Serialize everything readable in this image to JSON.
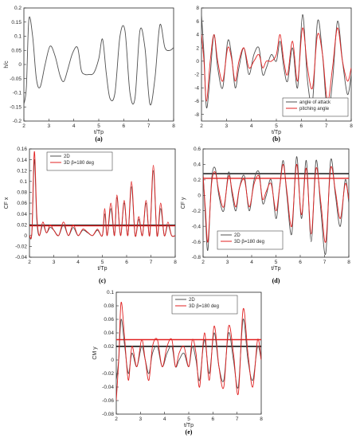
{
  "chart_data": [
    {
      "id": "a",
      "panel_label": "(a)",
      "type": "line",
      "xlabel": "t/Tp",
      "ylabel": "h/c",
      "xlim": [
        2,
        8
      ],
      "ylim": [
        -0.2,
        0.2
      ],
      "xticks": [
        "2",
        "3",
        "4",
        "5",
        "6",
        "7",
        "8"
      ],
      "yticks": [
        "-0.2",
        "-0.15",
        "-0.1",
        "-0.05",
        "0",
        "0.05",
        "0.1",
        "0.15",
        "0.2"
      ],
      "grid": false,
      "legend": null,
      "hlines": [],
      "series": [
        {
          "name": "",
          "color": "#505050",
          "x": [
            2,
            2.1,
            2.2,
            2.35,
            2.5,
            2.65,
            2.85,
            3.05,
            3.25,
            3.45,
            3.6,
            3.75,
            3.95,
            4.15,
            4.3,
            4.45,
            4.6,
            4.8,
            5.0,
            5.15,
            5.3,
            5.45,
            5.65,
            5.85,
            6.05,
            6.25,
            6.45,
            6.65,
            6.85,
            7.05,
            7.25,
            7.45,
            7.65,
            7.85,
            8.0
          ],
          "y": [
            -0.14,
            -0.08,
            0.16,
            0.1,
            -0.05,
            -0.08,
            0.0,
            0.065,
            0.03,
            -0.04,
            -0.06,
            -0.02,
            0.04,
            0.06,
            -0.02,
            -0.035,
            -0.035,
            -0.03,
            0.02,
            0.09,
            -0.03,
            -0.12,
            -0.1,
            0.1,
            0.12,
            -0.1,
            -0.12,
            0.12,
            0.06,
            -0.14,
            -0.05,
            0.14,
            0.06,
            0.05,
            0.06
          ]
        }
      ]
    },
    {
      "id": "b",
      "panel_label": "(b)",
      "type": "line",
      "xlabel": "t/Tp",
      "ylabel": "",
      "xlim": [
        2,
        8
      ],
      "ylim": [
        -9,
        8
      ],
      "xticks": [
        "2",
        "3",
        "4",
        "5",
        "6",
        "7",
        "8"
      ],
      "yticks": [
        "-8",
        "-6",
        "-4",
        "-2",
        "0",
        "2",
        "4",
        "6",
        "8"
      ],
      "grid": false,
      "legend": "bottom-right",
      "hlines": [],
      "series": [
        {
          "name": "angle of attack",
          "color": "#505050",
          "x": [
            2,
            2.1,
            2.2,
            2.35,
            2.5,
            2.65,
            2.85,
            3.05,
            3.2,
            3.35,
            3.5,
            3.7,
            3.9,
            4.1,
            4.3,
            4.45,
            4.6,
            4.8,
            5.0,
            5.15,
            5.3,
            5.45,
            5.65,
            5.85,
            6.05,
            6.25,
            6.45,
            6.65,
            6.85,
            7.05,
            7.25,
            7.45,
            7.65,
            7.85,
            8.0
          ],
          "y": [
            7,
            1,
            -7,
            -2,
            4,
            -1,
            -4,
            3,
            1,
            -4,
            -1,
            2,
            -2,
            1,
            2,
            -2,
            -1,
            1,
            0,
            3,
            -1,
            -3,
            2,
            -4,
            7,
            -3,
            -6,
            6,
            1,
            -8,
            -3,
            6,
            0,
            -5,
            -2
          ]
        },
        {
          "name": "pitching angle",
          "color": "#e02020",
          "x": [
            2,
            2.1,
            2.2,
            2.35,
            2.5,
            2.65,
            2.85,
            3.05,
            3.2,
            3.35,
            3.5,
            3.7,
            3.9,
            4.1,
            4.3,
            4.45,
            4.6,
            4.8,
            5.0,
            5.15,
            5.3,
            5.45,
            5.65,
            5.85,
            6.05,
            6.25,
            6.45,
            6.65,
            6.85,
            7.05,
            7.25,
            7.45,
            7.65,
            7.85,
            8.0
          ],
          "y": [
            4,
            0,
            -6,
            0,
            4,
            0,
            -3,
            2,
            0.5,
            -3,
            0,
            2,
            -1,
            0,
            1,
            -1,
            0,
            0,
            1,
            4,
            0,
            -2,
            3,
            -3,
            5,
            -1,
            -4,
            4,
            1,
            -6,
            -1,
            5,
            0,
            -3,
            -1
          ]
        }
      ]
    },
    {
      "id": "c",
      "panel_label": "(c)",
      "type": "line",
      "xlabel": "t/Tp",
      "ylabel": "CF x",
      "xlim": [
        2,
        8
      ],
      "ylim": [
        -0.04,
        0.16
      ],
      "xticks": [
        "2",
        "3",
        "4",
        "5",
        "6",
        "7",
        "8"
      ],
      "yticks": [
        "-0.04",
        "-0.02",
        "0",
        "0.02",
        "0.04",
        "0.06",
        "0.08",
        "0.1",
        "0.12",
        "0.14",
        "0.16"
      ],
      "grid": false,
      "legend": "top-left",
      "hlines": [
        {
          "y": 0.019,
          "color": "#000000"
        },
        {
          "y": 0.018,
          "color": "#e02020"
        }
      ],
      "series": [
        {
          "name": "2D",
          "color": "#505050",
          "x": [
            2,
            2.1,
            2.2,
            2.3,
            2.4,
            2.55,
            2.7,
            2.85,
            3.0,
            3.2,
            3.4,
            3.6,
            3.8,
            4.0,
            4.2,
            4.4,
            4.6,
            4.8,
            5.0,
            5.1,
            5.2,
            5.35,
            5.5,
            5.6,
            5.75,
            5.9,
            6.05,
            6.2,
            6.35,
            6.5,
            6.65,
            6.8,
            6.95,
            7.1,
            7.25,
            7.4,
            7.55,
            7.7,
            7.85,
            8.0
          ],
          "y": [
            0.0,
            0.005,
            0.14,
            0.03,
            0.0,
            0.02,
            0.005,
            0.015,
            0.01,
            0.0,
            0.02,
            0.0,
            0.015,
            0.0,
            0.01,
            0.005,
            0.0,
            0.01,
            0.0,
            0.04,
            0.0,
            0.05,
            0.0,
            0.07,
            0.0,
            0.06,
            0.0,
            0.09,
            0.0,
            0.03,
            0.0,
            0.06,
            0.0,
            0.12,
            0.0,
            0.05,
            0.0,
            0.02,
            0.0,
            0.0
          ]
        },
        {
          "name": "3D β=180 deg",
          "color": "#e02020",
          "x": [
            2,
            2.1,
            2.2,
            2.3,
            2.4,
            2.55,
            2.7,
            2.85,
            3.0,
            3.2,
            3.4,
            3.6,
            3.8,
            4.0,
            4.2,
            4.4,
            4.6,
            4.8,
            5.0,
            5.1,
            5.2,
            5.35,
            5.5,
            5.6,
            5.75,
            5.9,
            6.05,
            6.2,
            6.35,
            6.5,
            6.65,
            6.8,
            6.95,
            7.1,
            7.25,
            7.4,
            7.55,
            7.7,
            7.85,
            8.0
          ],
          "y": [
            0.0,
            0.008,
            0.155,
            0.04,
            0.0,
            0.025,
            0.005,
            0.02,
            0.01,
            0.0,
            0.025,
            0.0,
            0.02,
            0.0,
            0.012,
            0.006,
            0.0,
            0.012,
            0.0,
            0.05,
            0.0,
            0.06,
            0.0,
            0.075,
            0.0,
            0.065,
            0.0,
            0.1,
            0.0,
            0.035,
            0.0,
            0.065,
            0.0,
            0.13,
            0.0,
            0.06,
            0.0,
            0.025,
            0.0,
            0.0
          ]
        }
      ]
    },
    {
      "id": "d",
      "panel_label": "(d)",
      "type": "line",
      "xlabel": "t/Tp",
      "ylabel": "CF y",
      "xlim": [
        2,
        8
      ],
      "ylim": [
        -0.8,
        0.6
      ],
      "xticks": [
        "2",
        "3",
        "4",
        "5",
        "6",
        "7",
        "8"
      ],
      "yticks": [
        "-0.8",
        "-0.6",
        "-0.4",
        "-0.2",
        "0",
        "0.2",
        "0.4",
        "0.6"
      ],
      "grid": false,
      "legend": "bottom-left",
      "hlines": [
        {
          "y": 0.28,
          "color": "#000000"
        },
        {
          "y": 0.22,
          "color": "#e02020"
        }
      ],
      "series": [
        {
          "name": "2D",
          "color": "#505050",
          "x": [
            2,
            2.1,
            2.2,
            2.35,
            2.5,
            2.65,
            2.85,
            3.05,
            3.2,
            3.35,
            3.5,
            3.7,
            3.9,
            4.1,
            4.3,
            4.45,
            4.6,
            4.8,
            5.0,
            5.15,
            5.3,
            5.45,
            5.65,
            5.85,
            6.05,
            6.25,
            6.45,
            6.65,
            6.85,
            7.05,
            7.25,
            7.45,
            7.65,
            7.85,
            8.0
          ],
          "y": [
            0.3,
            -0.3,
            -0.7,
            0.2,
            0.35,
            0.0,
            -0.2,
            0.3,
            0.0,
            -0.2,
            0.1,
            0.25,
            -0.2,
            0.2,
            0.3,
            -0.1,
            0.0,
            0.2,
            -0.3,
            0.1,
            0.45,
            0.0,
            -0.5,
            0.5,
            -0.3,
            0.45,
            -0.6,
            0.45,
            -0.2,
            -0.75,
            0.45,
            0.0,
            -0.4,
            0.2,
            -0.1
          ]
        },
        {
          "name": "3D β=180 deg",
          "color": "#e02020",
          "x": [
            2,
            2.1,
            2.2,
            2.35,
            2.5,
            2.65,
            2.85,
            3.05,
            3.2,
            3.35,
            3.5,
            3.7,
            3.9,
            4.1,
            4.3,
            4.45,
            4.6,
            4.8,
            5.0,
            5.15,
            5.3,
            5.45,
            5.65,
            5.85,
            6.05,
            6.25,
            6.45,
            6.65,
            6.85,
            7.05,
            7.25,
            7.45,
            7.65,
            7.85,
            8.0
          ],
          "y": [
            0.25,
            -0.2,
            -0.6,
            0.15,
            0.3,
            0.05,
            -0.15,
            0.25,
            0.05,
            -0.15,
            0.1,
            0.2,
            -0.15,
            0.15,
            0.25,
            -0.05,
            0.05,
            0.15,
            -0.2,
            0.1,
            0.4,
            0.05,
            -0.4,
            0.4,
            -0.25,
            0.35,
            -0.5,
            0.35,
            -0.1,
            -0.6,
            0.35,
            0.05,
            -0.3,
            0.15,
            -0.05
          ]
        }
      ]
    },
    {
      "id": "e",
      "panel_label": "(e)",
      "type": "line",
      "xlabel": "t/Tp",
      "ylabel": "CM y",
      "xlim": [
        2,
        8
      ],
      "ylim": [
        -0.08,
        0.1
      ],
      "xticks": [
        "2",
        "3",
        "4",
        "5",
        "6",
        "7",
        "8"
      ],
      "yticks": [
        "-0.08",
        "-0.06",
        "-0.04",
        "-0.02",
        "0",
        "0.02",
        "0.04",
        "0.06",
        "0.08",
        "0.1"
      ],
      "grid": false,
      "legend": "top-right",
      "hlines": [
        {
          "y": 0.02,
          "color": "#000000"
        },
        {
          "y": 0.03,
          "color": "#e02020"
        }
      ],
      "series": [
        {
          "name": "2D",
          "color": "#505050",
          "x": [
            2,
            2.1,
            2.2,
            2.35,
            2.5,
            2.65,
            2.85,
            3.05,
            3.2,
            3.35,
            3.5,
            3.7,
            3.9,
            4.1,
            4.3,
            4.45,
            4.6,
            4.8,
            5.0,
            5.15,
            5.3,
            5.45,
            5.65,
            5.85,
            6.05,
            6.25,
            6.45,
            6.65,
            6.85,
            7.05,
            7.25,
            7.45,
            7.65,
            7.85,
            8.0
          ],
          "y": [
            -0.03,
            0.0,
            0.06,
            0.02,
            -0.02,
            0.01,
            -0.01,
            0.02,
            0.0,
            -0.02,
            0.01,
            0.02,
            -0.01,
            0.01,
            0.02,
            -0.01,
            0.0,
            0.01,
            -0.01,
            0.02,
            0.0,
            -0.03,
            0.03,
            -0.02,
            0.04,
            -0.01,
            -0.03,
            0.04,
            0.0,
            -0.04,
            0.06,
            0.0,
            -0.03,
            0.02,
            0.0
          ]
        },
        {
          "name": "3D β=180 deg",
          "color": "#e02020",
          "x": [
            2,
            2.1,
            2.2,
            2.35,
            2.5,
            2.65,
            2.85,
            3.05,
            3.2,
            3.35,
            3.5,
            3.7,
            3.9,
            4.1,
            4.3,
            4.45,
            4.6,
            4.8,
            5.0,
            5.15,
            5.3,
            5.45,
            5.65,
            5.85,
            6.05,
            6.25,
            6.45,
            6.65,
            6.85,
            7.05,
            7.25,
            7.45,
            7.65,
            7.85,
            8.0
          ],
          "y": [
            -0.06,
            0.0,
            0.085,
            0.03,
            -0.03,
            0.02,
            -0.01,
            0.03,
            0.0,
            -0.03,
            0.02,
            0.03,
            -0.01,
            0.02,
            0.03,
            -0.01,
            0.01,
            0.02,
            -0.01,
            0.03,
            0.01,
            -0.04,
            0.04,
            -0.03,
            0.05,
            -0.01,
            -0.04,
            0.05,
            0.01,
            -0.05,
            0.075,
            0.01,
            -0.04,
            0.03,
            0.0
          ]
        }
      ]
    }
  ]
}
